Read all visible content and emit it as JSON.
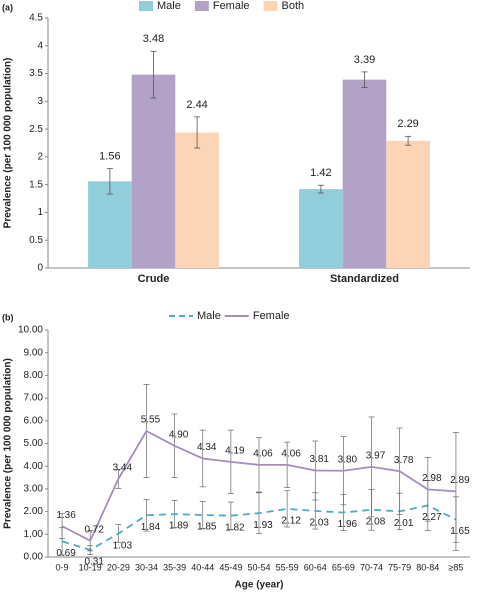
{
  "chart_data": [
    {
      "type": "bar",
      "panel_label": "(a)",
      "y_label": "Prevalence (per 100 000 population)",
      "categories": [
        "Crude",
        "Standardized"
      ],
      "series": [
        {
          "name": "Male",
          "color": "#92cddc",
          "values": [
            1.56,
            1.42
          ],
          "errors": [
            0.23,
            0.07
          ]
        },
        {
          "name": "Female",
          "color": "#b3a2c7",
          "values": [
            3.48,
            3.39
          ],
          "errors": [
            0.42,
            0.14
          ]
        },
        {
          "name": "Both",
          "color": "#fbd5b5",
          "values": [
            2.44,
            2.29
          ],
          "errors": [
            0.28,
            0.08
          ]
        }
      ],
      "ylim": [
        0,
        4.5
      ],
      "yticks": [
        0,
        0.5,
        1,
        1.5,
        2,
        2.5,
        3,
        3.5,
        4,
        4.5
      ],
      "grid": false
    },
    {
      "type": "line",
      "panel_label": "(b)",
      "y_label": "Prevalence (per 100 000 population)",
      "x_label": "Age (year)",
      "categories": [
        "0-9",
        "10-19",
        "20-29",
        "30-34",
        "35-39",
        "40-44",
        "45-49",
        "50-54",
        "55-59",
        "60-64",
        "65-69",
        "70-74",
        "75-79",
        "80-84",
        "≥85"
      ],
      "series": [
        {
          "name": "Male",
          "color": "#4bacc6",
          "dashed": true,
          "values": [
            0.69,
            0.31,
            1.03,
            1.84,
            1.89,
            1.85,
            1.82,
            1.93,
            2.12,
            2.03,
            1.96,
            2.08,
            2.01,
            2.27,
            1.65
          ],
          "value_labels": [
            "0.69",
            "0.31",
            "1.03",
            "1.84",
            "1.89",
            "1.85",
            "1.82",
            "1.93",
            "2.12",
            "2.03",
            "1.96",
            "2.08",
            "2.01",
            "2.27",
            "1.65"
          ],
          "errors": [
            0.6,
            0.2,
            0.4,
            0.7,
            0.6,
            0.6,
            0.6,
            0.9,
            0.8,
            0.8,
            0.8,
            0.9,
            0.8,
            1.1,
            1.0
          ]
        },
        {
          "name": "Female",
          "color": "#a68bc1",
          "dashed": false,
          "values": [
            1.36,
            0.72,
            3.44,
            5.55,
            4.9,
            4.34,
            4.19,
            4.06,
            4.06,
            3.81,
            3.8,
            3.97,
            3.78,
            2.98,
            2.89
          ],
          "value_labels": [
            "1.36",
            "0.72",
            "3.44",
            "5.55",
            "4.90",
            "4.34",
            "4.19",
            "4.06",
            "4.06",
            "3.81",
            "3.80",
            "3.97",
            "3.78",
            "2.98",
            "2.89"
          ],
          "errors": [
            0.55,
            0.45,
            0.42,
            2.05,
            1.4,
            1.25,
            1.4,
            1.2,
            1.0,
            1.3,
            1.5,
            2.2,
            1.9,
            1.4,
            2.6
          ]
        }
      ],
      "ylim": [
        0,
        10
      ],
      "yticks": [
        {
          "value": 0,
          "label": "0.00"
        },
        {
          "value": 1,
          "label": "1.00"
        },
        {
          "value": 2,
          "label": "2.00"
        },
        {
          "value": 3,
          "label": "3.00"
        },
        {
          "value": 4,
          "label": "4.00"
        },
        {
          "value": 5,
          "label": "5.00"
        },
        {
          "value": 6,
          "label": "6.00"
        },
        {
          "value": 7,
          "label": "7.00"
        },
        {
          "value": 8,
          "label": "8.00"
        },
        {
          "value": 9,
          "label": "9.00"
        },
        {
          "value": 10,
          "label": "10.00"
        }
      ],
      "grid": false
    }
  ]
}
